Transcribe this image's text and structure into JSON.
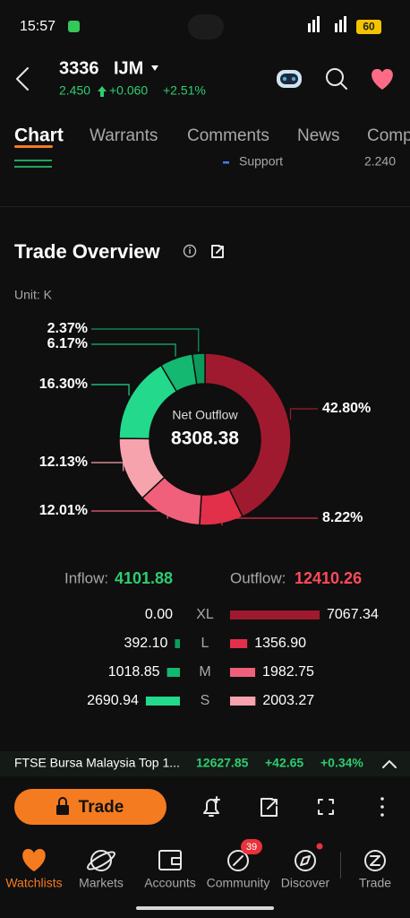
{
  "status": {
    "time": "15:57",
    "battery": "60"
  },
  "header": {
    "code": "3336",
    "name": "IJM",
    "price": "2.450",
    "change": "+0.060",
    "change_pct": "+2.51%"
  },
  "tabs": [
    "Chart",
    "Warrants",
    "Comments",
    "News",
    "Comp"
  ],
  "support": {
    "label": "Support",
    "value": "2.240"
  },
  "section": {
    "title": "Trade Overview",
    "unit": "Unit: K"
  },
  "chart_data": {
    "type": "pie",
    "center_label": "Net Outflow",
    "center_value": "8308.38",
    "values": [
      42.8,
      8.22,
      12.01,
      12.13,
      16.3,
      6.17,
      2.37
    ],
    "value_labels": [
      "42.80%",
      "8.22%",
      "12.01%",
      "12.13%",
      "16.30%",
      "6.17%",
      "2.37%"
    ],
    "colors": [
      "#a01a2f",
      "#e2304a",
      "#f0607a",
      "#f7a3ae",
      "#22d98c",
      "#14b870",
      "#0c9a5a"
    ]
  },
  "flow": {
    "inflow_label": "Inflow:",
    "inflow_total": "4101.88",
    "outflow_label": "Outflow:",
    "outflow_total": "12410.26",
    "categories": [
      "XL",
      "L",
      "M",
      "S"
    ],
    "inflow": {
      "values": [
        0,
        392.1,
        1018.85,
        2690.94
      ],
      "value_labels": [
        "0.00",
        "392.10",
        "1018.85",
        "2690.94"
      ],
      "colors": [
        "#666666",
        "#0c9a5a",
        "#14b870",
        "#22d98c"
      ]
    },
    "outflow": {
      "values": [
        7067.34,
        1356.9,
        1982.75,
        2003.27
      ],
      "value_labels": [
        "7067.34",
        "1356.90",
        "1982.75",
        "2003.27"
      ],
      "colors": [
        "#a01a2f",
        "#e2304a",
        "#f0607a",
        "#f7a3ae"
      ]
    }
  },
  "ticker": {
    "name": "FTSE Bursa Malaysia Top 1...",
    "value": "12627.85",
    "change": "+42.65",
    "change_pct": "+0.34%"
  },
  "toolbar": {
    "button": "Trade"
  },
  "nav": {
    "items": [
      "Watchlists",
      "Markets",
      "Accounts",
      "Community",
      "Discover",
      "Trade"
    ],
    "badge": "39"
  }
}
